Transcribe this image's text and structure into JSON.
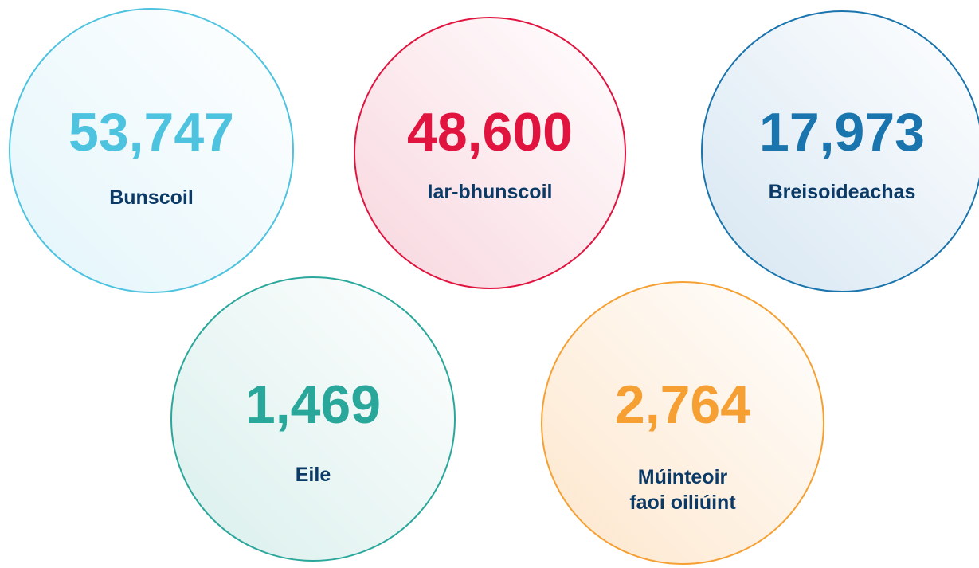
{
  "items": [
    {
      "value": "53,747",
      "label": [
        "Bunscoil"
      ],
      "color": "#4ec3e0",
      "fill": "#e3f5fb"
    },
    {
      "value": "48,600",
      "label": [
        "Iar-bhunscoil"
      ],
      "color": "#e0143f",
      "fill": "#f8d6de"
    },
    {
      "value": "17,973",
      "label": [
        "Breisoideachas"
      ],
      "color": "#1a74ad",
      "fill": "#d6e6f2"
    },
    {
      "value": "1,469",
      "label": [
        "Eile"
      ],
      "color": "#2aa79b",
      "fill": "#d9efec"
    },
    {
      "value": "2,764",
      "label": [
        "Múinteoir",
        "faoi oiliúint"
      ],
      "color": "#f6a033",
      "fill": "#fde6cc"
    }
  ]
}
